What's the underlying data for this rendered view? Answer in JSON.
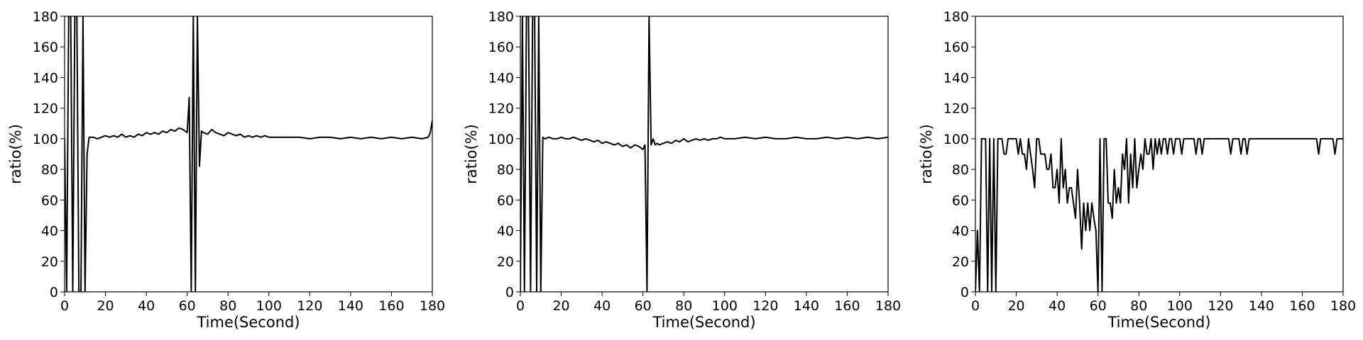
{
  "chart_data": [
    {
      "type": "line",
      "xlabel": "Time(Second)",
      "ylabel": "ratio(%)",
      "xlim": [
        0,
        180
      ],
      "ylim": [
        0,
        180
      ],
      "xticks": [
        0,
        20,
        40,
        60,
        80,
        100,
        120,
        140,
        160,
        180
      ],
      "yticks": [
        0,
        20,
        40,
        60,
        80,
        100,
        120,
        140,
        160,
        180
      ],
      "grid": false,
      "series": [
        {
          "x": [
            0,
            1,
            2,
            3,
            4,
            5,
            6,
            7,
            8,
            9,
            10,
            11,
            12,
            14,
            16,
            18,
            20,
            22,
            24,
            26,
            28,
            30,
            32,
            34,
            36,
            38,
            40,
            42,
            44,
            46,
            48,
            50,
            52,
            54,
            56,
            58,
            60,
            61,
            62,
            63,
            64,
            65,
            66,
            67,
            68,
            70,
            72,
            74,
            76,
            78,
            80,
            82,
            84,
            86,
            88,
            90,
            92,
            94,
            96,
            98,
            100,
            105,
            110,
            115,
            120,
            125,
            130,
            135,
            140,
            145,
            150,
            155,
            160,
            165,
            170,
            175,
            178,
            179,
            180
          ],
          "y": [
            100,
            0,
            180,
            180,
            0,
            180,
            180,
            0,
            0,
            180,
            0,
            90,
            101,
            101,
            100,
            101,
            102,
            101,
            102,
            101,
            103,
            101,
            102,
            101,
            103,
            102,
            104,
            103,
            104,
            103,
            105,
            104,
            106,
            105,
            107,
            106,
            104,
            127,
            0,
            180,
            0,
            180,
            82,
            105,
            104,
            103,
            106,
            104,
            103,
            102,
            104,
            103,
            102,
            103,
            101,
            102,
            101,
            102,
            101,
            102,
            101,
            101,
            101,
            101,
            100,
            101,
            101,
            100,
            101,
            100,
            101,
            100,
            101,
            100,
            101,
            100,
            101,
            104,
            112
          ]
        }
      ]
    },
    {
      "type": "line",
      "xlabel": "Time(Second)",
      "ylabel": "ratio(%)",
      "xlim": [
        0,
        180
      ],
      "ylim": [
        0,
        180
      ],
      "xticks": [
        0,
        20,
        40,
        60,
        80,
        100,
        120,
        140,
        160,
        180
      ],
      "yticks": [
        0,
        20,
        40,
        60,
        80,
        100,
        120,
        140,
        160,
        180
      ],
      "grid": false,
      "series": [
        {
          "x": [
            0,
            1,
            2,
            3,
            4,
            5,
            6,
            7,
            8,
            9,
            10,
            11,
            12,
            14,
            16,
            18,
            20,
            22,
            24,
            26,
            28,
            30,
            32,
            34,
            36,
            38,
            40,
            42,
            44,
            46,
            48,
            50,
            52,
            54,
            56,
            58,
            60,
            61,
            62,
            63,
            64,
            65,
            66,
            67,
            68,
            70,
            72,
            74,
            76,
            78,
            80,
            82,
            84,
            86,
            88,
            90,
            92,
            94,
            96,
            98,
            100,
            105,
            110,
            115,
            120,
            125,
            130,
            135,
            140,
            145,
            150,
            155,
            160,
            165,
            170,
            175,
            180
          ],
          "y": [
            0,
            180,
            0,
            180,
            180,
            0,
            180,
            180,
            0,
            180,
            0,
            101,
            100,
            101,
            100,
            100,
            101,
            100,
            100,
            101,
            100,
            99,
            100,
            99,
            98,
            99,
            97,
            98,
            97,
            96,
            97,
            95,
            96,
            94,
            96,
            95,
            93,
            96,
            0,
            180,
            96,
            100,
            96,
            97,
            96,
            97,
            98,
            97,
            99,
            98,
            100,
            98,
            99,
            100,
            99,
            100,
            99,
            100,
            100,
            101,
            100,
            100,
            101,
            100,
            101,
            100,
            100,
            101,
            100,
            100,
            101,
            100,
            101,
            100,
            101,
            100,
            101
          ]
        }
      ]
    },
    {
      "type": "line",
      "xlabel": "Time(Second)",
      "ylabel": "ratio(%)",
      "xlim": [
        0,
        180
      ],
      "ylim": [
        0,
        180
      ],
      "xticks": [
        0,
        20,
        40,
        60,
        80,
        100,
        120,
        140,
        160,
        180
      ],
      "yticks": [
        0,
        20,
        40,
        60,
        80,
        100,
        120,
        140,
        160,
        180
      ],
      "grid": false,
      "series": [
        {
          "x": [
            0,
            1,
            2,
            3,
            4,
            5,
            6,
            7,
            8,
            9,
            10,
            11,
            12,
            13,
            14,
            15,
            16,
            17,
            18,
            19,
            20,
            21,
            22,
            23,
            24,
            25,
            26,
            27,
            28,
            29,
            30,
            31,
            32,
            33,
            34,
            35,
            36,
            37,
            38,
            39,
            40,
            41,
            42,
            43,
            44,
            45,
            46,
            47,
            48,
            49,
            50,
            51,
            52,
            53,
            54,
            55,
            56,
            57,
            58,
            59,
            60,
            61,
            62,
            63,
            64,
            65,
            66,
            67,
            68,
            69,
            70,
            71,
            72,
            73,
            74,
            75,
            76,
            77,
            78,
            79,
            80,
            81,
            82,
            83,
            84,
            85,
            86,
            87,
            88,
            89,
            90,
            91,
            92,
            93,
            94,
            95,
            96,
            97,
            98,
            99,
            100,
            101,
            102,
            103,
            104,
            105,
            106,
            107,
            108,
            109,
            110,
            111,
            112,
            113,
            114,
            115,
            116,
            117,
            118,
            119,
            120,
            121,
            122,
            123,
            124,
            125,
            126,
            127,
            128,
            129,
            130,
            131,
            132,
            133,
            134,
            135,
            136,
            137,
            138,
            139,
            140,
            141,
            142,
            143,
            144,
            145,
            146,
            147,
            148,
            149,
            150,
            151,
            152,
            153,
            154,
            155,
            156,
            157,
            158,
            159,
            160,
            161,
            162,
            163,
            164,
            165,
            166,
            167,
            168,
            169,
            170,
            171,
            172,
            173,
            174,
            175,
            176,
            177,
            178,
            179,
            180
          ],
          "y": [
            0,
            40,
            0,
            100,
            100,
            100,
            0,
            100,
            0,
            100,
            0,
            100,
            100,
            100,
            90,
            90,
            100,
            100,
            100,
            100,
            100,
            90,
            100,
            90,
            90,
            80,
            100,
            90,
            80,
            68,
            100,
            100,
            90,
            90,
            90,
            80,
            80,
            90,
            68,
            68,
            80,
            58,
            100,
            68,
            80,
            58,
            68,
            68,
            58,
            48,
            80,
            58,
            28,
            58,
            40,
            58,
            40,
            58,
            48,
            40,
            0,
            100,
            0,
            100,
            100,
            58,
            58,
            48,
            80,
            58,
            68,
            58,
            90,
            80,
            100,
            58,
            90,
            68,
            100,
            68,
            80,
            90,
            80,
            100,
            90,
            90,
            100,
            80,
            100,
            90,
            100,
            90,
            100,
            100,
            90,
            100,
            100,
            90,
            100,
            100,
            100,
            90,
            100,
            100,
            100,
            100,
            100,
            100,
            90,
            100,
            100,
            90,
            100,
            100,
            100,
            100,
            100,
            100,
            100,
            100,
            100,
            100,
            100,
            100,
            100,
            90,
            100,
            100,
            100,
            100,
            90,
            100,
            100,
            90,
            100,
            100,
            100,
            100,
            100,
            100,
            100,
            100,
            100,
            100,
            100,
            100,
            100,
            100,
            100,
            100,
            100,
            100,
            100,
            100,
            100,
            100,
            100,
            100,
            100,
            100,
            100,
            100,
            100,
            100,
            100,
            100,
            100,
            100,
            90,
            100,
            100,
            100,
            100,
            100,
            100,
            100,
            90,
            100,
            100,
            100,
            100
          ]
        }
      ]
    }
  ]
}
